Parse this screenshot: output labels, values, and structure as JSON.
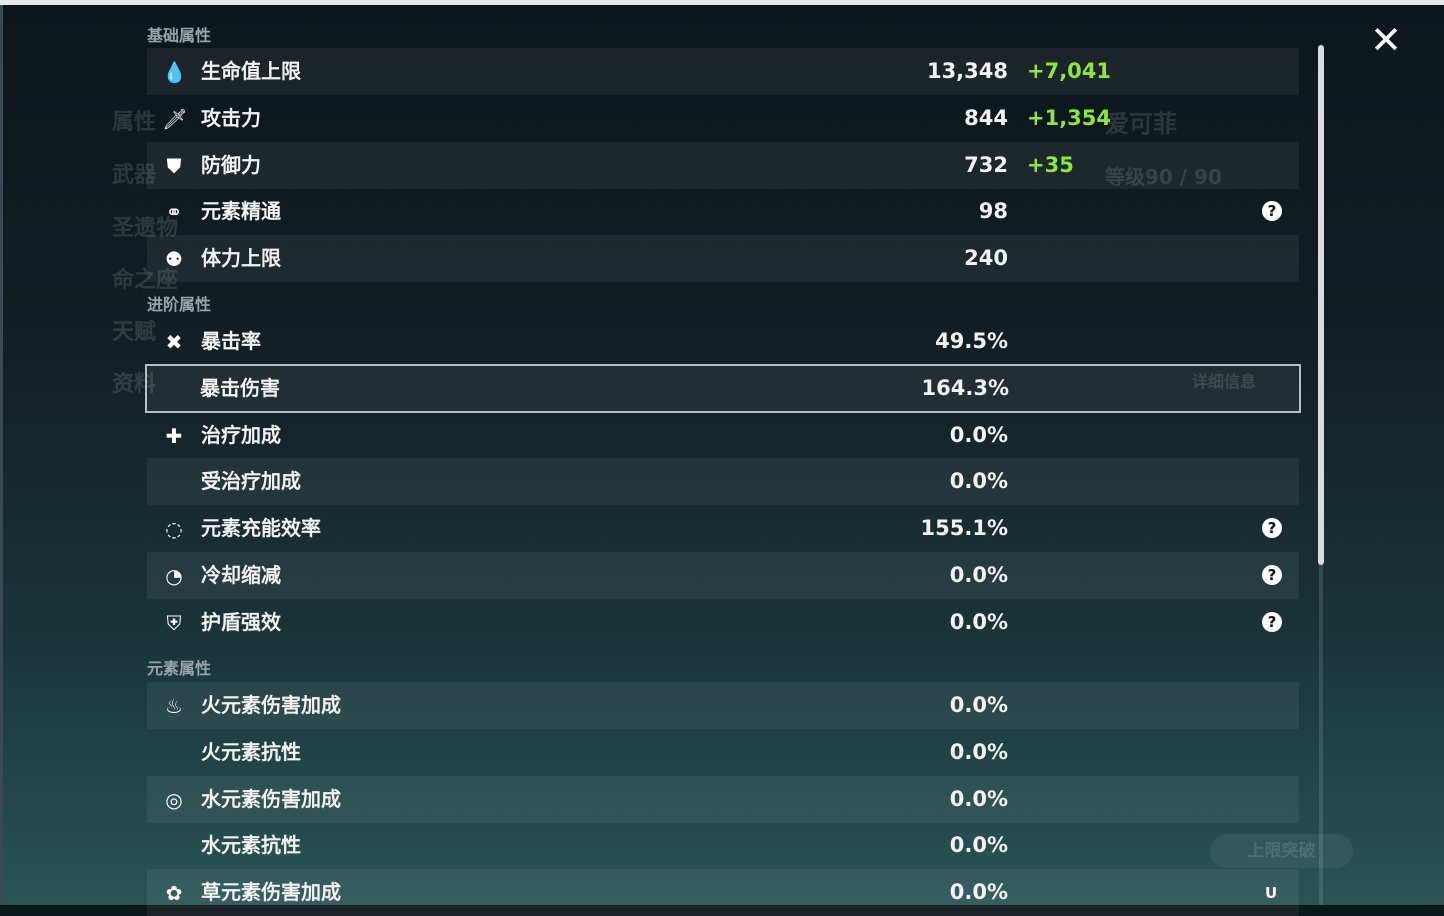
{
  "close_label": "✕",
  "background": {
    "tabs": [
      "属性",
      "武器",
      "圣遗物",
      "命之座",
      "天赋",
      "资料"
    ],
    "character_name": "爱可菲",
    "level": "等级90 / 90",
    "details_button": "详细信息",
    "ascend_button": "上限突破"
  },
  "sections": [
    {
      "title": "基础属性",
      "rows": [
        {
          "icon": "hp-drop-icon",
          "glyph": "💧",
          "label": "生命值上限",
          "value": "13,348",
          "bonus": "+7,041",
          "help": false
        },
        {
          "icon": "sword-icon",
          "glyph": "🗡",
          "label": "攻击力",
          "value": "844",
          "bonus": "+1,354",
          "help": false
        },
        {
          "icon": "shield-icon",
          "glyph": "⛊",
          "label": "防御力",
          "value": "732",
          "bonus": "+35",
          "help": false
        },
        {
          "icon": "elemental-mastery-icon",
          "glyph": "⚭",
          "label": "元素精通",
          "value": "98",
          "bonus": "",
          "help": true
        },
        {
          "icon": "stamina-icon",
          "glyph": "⚉",
          "label": "体力上限",
          "value": "240",
          "bonus": "",
          "help": false
        }
      ]
    },
    {
      "title": "进阶属性",
      "rows": [
        {
          "icon": "crit-rate-icon",
          "glyph": "✖",
          "label": "暴击率",
          "value": "49.5%",
          "bonus": "",
          "help": false
        },
        {
          "icon": "crit-dmg-icon",
          "glyph": "",
          "label": "暴击伤害",
          "value": "164.3%",
          "bonus": "",
          "help": false,
          "selected": true
        },
        {
          "icon": "healing-cross-icon",
          "glyph": "✚",
          "label": "治疗加成",
          "value": "0.0%",
          "bonus": "",
          "help": false
        },
        {
          "icon": "",
          "glyph": "",
          "label": "受治疗加成",
          "value": "0.0%",
          "bonus": "",
          "help": false
        },
        {
          "icon": "energy-recharge-icon",
          "glyph": "◌",
          "label": "元素充能效率",
          "value": "155.1%",
          "bonus": "",
          "help": true
        },
        {
          "icon": "cooldown-icon",
          "glyph": "◔",
          "label": "冷却缩减",
          "value": "0.0%",
          "bonus": "",
          "help": true
        },
        {
          "icon": "shield-strength-icon",
          "glyph": "⛨",
          "label": "护盾强效",
          "value": "0.0%",
          "bonus": "",
          "help": true
        }
      ]
    },
    {
      "title": "元素属性",
      "rows": [
        {
          "icon": "pyro-icon",
          "glyph": "♨",
          "label": "火元素伤害加成",
          "value": "0.0%",
          "bonus": "",
          "help": false
        },
        {
          "icon": "",
          "glyph": "",
          "label": "火元素抗性",
          "value": "0.0%",
          "bonus": "",
          "help": false
        },
        {
          "icon": "hydro-icon",
          "glyph": "◎",
          "label": "水元素伤害加成",
          "value": "0.0%",
          "bonus": "",
          "help": false
        },
        {
          "icon": "",
          "glyph": "",
          "label": "水元素抗性",
          "value": "0.0%",
          "bonus": "",
          "help": false
        },
        {
          "icon": "dendro-icon",
          "glyph": "✿",
          "label": "草元素伤害加成",
          "value": "0.0%",
          "bonus": "",
          "help": false
        }
      ]
    }
  ],
  "help_glyph": "?",
  "watermark": "U"
}
